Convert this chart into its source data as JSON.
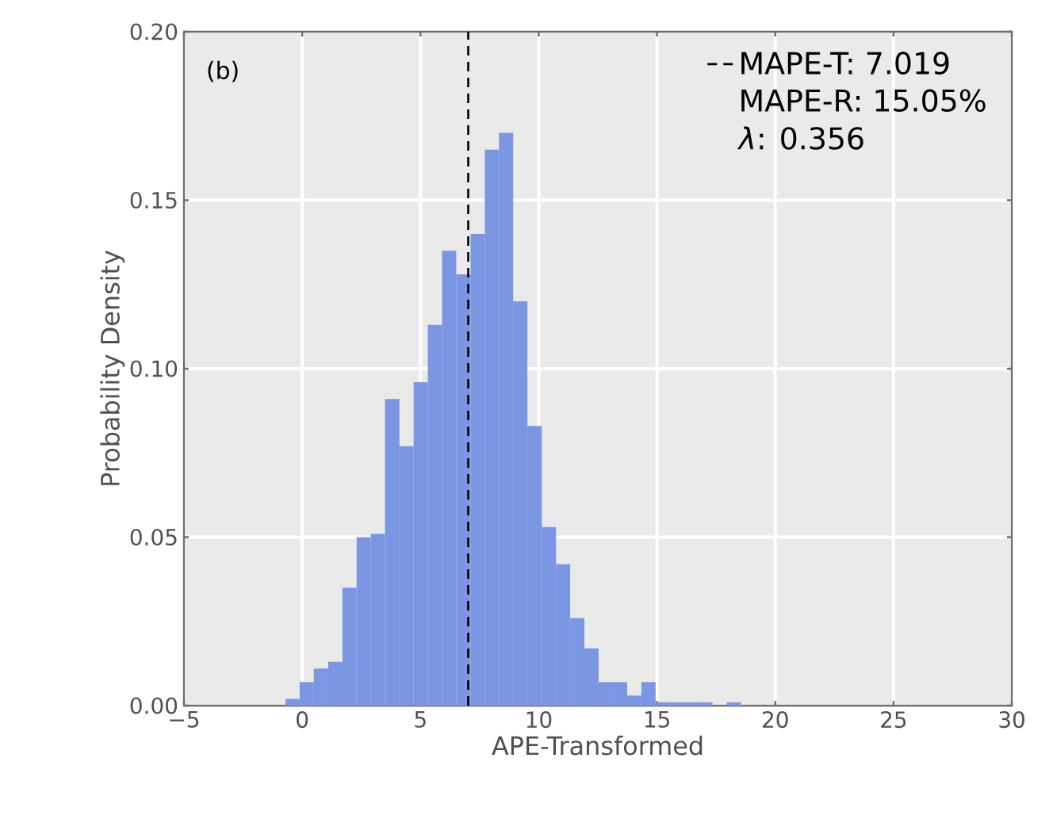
{
  "chart_data": {
    "type": "histogram",
    "xlabel": "APE-Transformed",
    "ylabel": "Probability Density",
    "bins": [
      -0.71,
      -0.11,
      0.49,
      1.1,
      1.7,
      2.3,
      2.9,
      3.5,
      4.11,
      4.71,
      5.31,
      5.91,
      6.51,
      7.12,
      7.72,
      8.32,
      8.92,
      9.52,
      10.13,
      10.73,
      11.33,
      11.93,
      12.53,
      13.14,
      13.74,
      14.34,
      14.94,
      15.54,
      16.15,
      16.75,
      17.35,
      17.95,
      18.55
    ],
    "values": [
      0.002,
      0.007,
      0.011,
      0.013,
      0.035,
      0.05,
      0.051,
      0.091,
      0.077,
      0.096,
      0.113,
      0.135,
      0.128,
      0.14,
      0.165,
      0.17,
      0.12,
      0.083,
      0.053,
      0.042,
      0.026,
      0.017,
      0.007,
      0.007,
      0.003,
      0.007,
      0.001,
      0.001,
      0.001,
      0.001,
      0.0,
      0.001
    ],
    "color": "#7b96e3",
    "xlim": [
      -5,
      30
    ],
    "xticks": [
      {
        "value": -5,
        "label": "−5"
      },
      0,
      5,
      10,
      15,
      20,
      25,
      30
    ],
    "ylim": [
      0,
      0.2
    ],
    "yticks": [
      {
        "value": 0,
        "label": "0.00"
      },
      {
        "value": 0.05,
        "label": "0.05"
      },
      {
        "value": 0.1,
        "label": "0.10"
      },
      {
        "value": 0.15,
        "label": "0.15"
      },
      {
        "value": 0.2,
        "label": "0.20"
      }
    ],
    "grid": true,
    "legend": "top right",
    "ref_lines": [
      {
        "axis": "x",
        "value": 7.019,
        "label": "MAPE-T: 7.019",
        "color": "#000000",
        "line_style": "dashed"
      }
    ],
    "annotations": [
      "(b)",
      "MAPE-R: 15.05%",
      "*λ*: 0.356"
    ]
  }
}
